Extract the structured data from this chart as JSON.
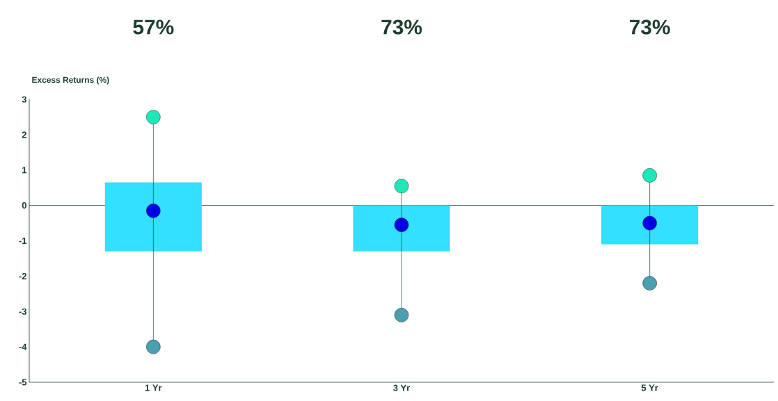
{
  "chart_data": {
    "type": "box",
    "ylabel": "Excess Returns (%)",
    "categories": [
      "1 Yr",
      "3 Yr",
      "5 Yr"
    ],
    "series": [
      {
        "color": "#33e0ff",
        "boxes": [
          {
            "low": -4.0,
            "q1": -1.3,
            "median": -0.15,
            "q3": 0.65,
            "high": 2.5
          },
          {
            "low": -3.1,
            "q1": -1.3,
            "median": -0.55,
            "q3": 0,
            "high": 0.55
          },
          {
            "low": -2.2,
            "q1": -1.1,
            "median": -0.5,
            "q3": 0,
            "high": 0.85
          }
        ]
      },
      {
        "type": "scatter",
        "color": "#1de9b6",
        "values": [
          2.5,
          0.55,
          0.85
        ]
      },
      {
        "type": "scatter",
        "color": "#4a9fb0",
        "values": [
          -4.0,
          -3.1,
          -2.2
        ]
      }
    ],
    "ylim": [
      -5,
      3
    ],
    "yticks": [
      -5,
      -4,
      -3,
      -2,
      -1,
      0,
      1,
      2,
      3
    ],
    "ref_lines": [
      {
        "axis": "y",
        "value": 0,
        "color": "#1f3d2e"
      }
    ],
    "annotations": [
      "57%",
      "73%",
      "73%"
    ],
    "grid": false
  }
}
